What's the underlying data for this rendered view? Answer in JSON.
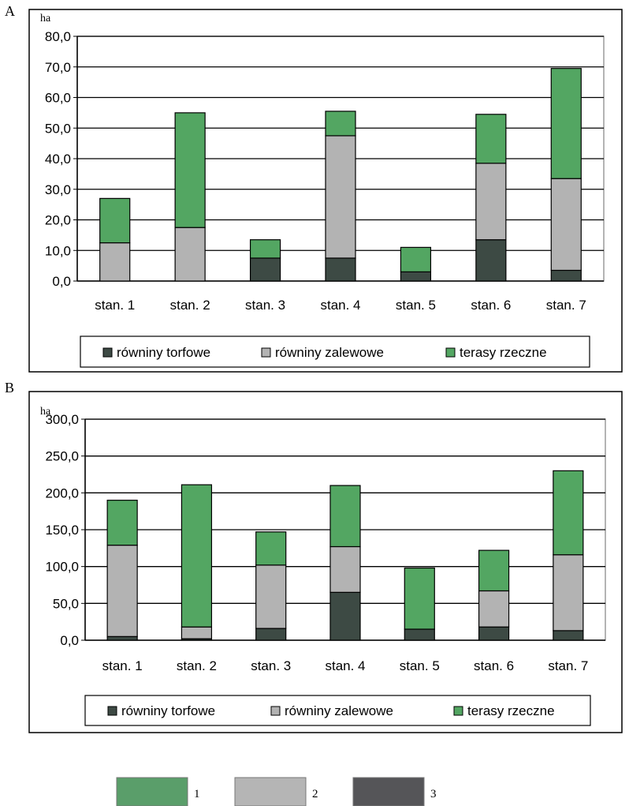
{
  "chart_data": [
    {
      "type": "bar",
      "stacked": true,
      "panel_label": "A",
      "unit_label": "ha",
      "ylim": [
        0,
        80
      ],
      "y_ticks": [
        "80,0",
        "70,0",
        "60,0",
        "50,0",
        "40,0",
        "30,0",
        "20,0",
        "10,0",
        "0,0"
      ],
      "y_tick_values": [
        80,
        70,
        60,
        50,
        40,
        30,
        20,
        10,
        0
      ],
      "grid": true,
      "categories": [
        "stan. 1",
        "stan. 2",
        "stan. 3",
        "stan. 4",
        "stan. 5",
        "stan. 6",
        "stan. 7"
      ],
      "series": [
        {
          "name": "równiny torfowe",
          "color": "#3d4a44",
          "values": [
            0,
            0,
            7.5,
            7.5,
            3,
            13.5,
            3.5
          ]
        },
        {
          "name": "równiny zalewowe",
          "color": "#b3b3b3",
          "values": [
            12.5,
            17.5,
            0,
            40,
            0,
            25,
            30
          ]
        },
        {
          "name": "terasy rzeczne",
          "color": "#53a662",
          "values": [
            14.5,
            37.5,
            6,
            8,
            8,
            16,
            36
          ]
        }
      ],
      "legend_position": "bottom"
    },
    {
      "type": "bar",
      "stacked": true,
      "panel_label": "B",
      "unit_label": "ha",
      "ylim": [
        0,
        300
      ],
      "y_ticks": [
        "300,0",
        "250,0",
        "200,0",
        "150,0",
        "100,0",
        "50,0",
        "0,0"
      ],
      "y_tick_values": [
        300,
        250,
        200,
        150,
        100,
        50,
        0
      ],
      "grid": true,
      "categories": [
        "stan. 1",
        "stan. 2",
        "stan. 3",
        "stan. 4",
        "stan. 5",
        "stan. 6",
        "stan. 7"
      ],
      "series": [
        {
          "name": "równiny torfowe",
          "color": "#3d4a44",
          "values": [
            5,
            2,
            16,
            65,
            15,
            18,
            13
          ]
        },
        {
          "name": "równiny zalewowe",
          "color": "#b3b3b3",
          "values": [
            124,
            16,
            86,
            62,
            0,
            49,
            103
          ]
        },
        {
          "name": "terasy rzeczne",
          "color": "#53a662",
          "values": [
            61,
            193,
            45,
            83,
            83,
            55,
            114
          ]
        }
      ],
      "legend_position": "bottom"
    }
  ],
  "key": [
    {
      "label": "1",
      "color": "#5a9e6a"
    },
    {
      "label": "2",
      "color": "#b5b5b5"
    },
    {
      "label": "3",
      "color": "#555558"
    }
  ]
}
